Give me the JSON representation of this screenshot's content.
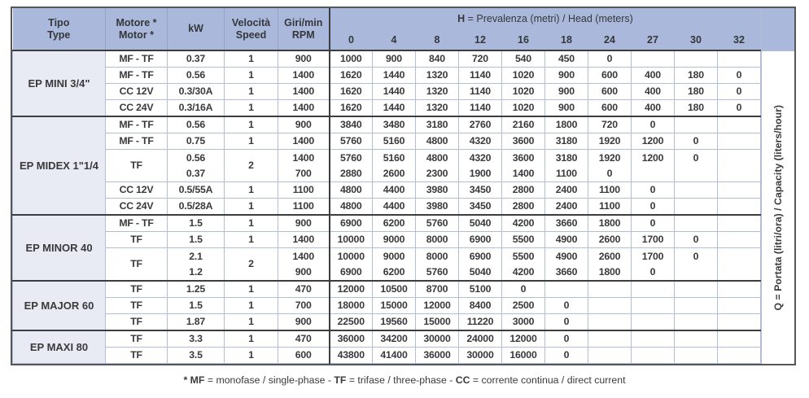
{
  "colors": {
    "header_bg": "#aab9db",
    "group_bg": "#e8eaf4",
    "grid_thin": "#b3bdd6",
    "grid_thick": "#3c3d40",
    "outer_border": "#55565a",
    "text": "#3a3a3c"
  },
  "table": {
    "header": {
      "tipo": "Tipo\nType",
      "motore": "Motore *\nMotor *",
      "kw": "kW",
      "speed": "Velocità\nSpeed",
      "rpm": "Giri/min\nRPM",
      "h_title_parts": [
        {
          "t": "H",
          "b": true
        },
        {
          "t": " = Prevalenza (metri) / Head (meters)",
          "b": false
        }
      ],
      "heads": [
        "0",
        "4",
        "8",
        "12",
        "16",
        "18",
        "24",
        "27",
        "30",
        "32"
      ]
    },
    "q_label": "Q = Portata (litri/ora) / Capacity (liters/hour)",
    "groups": [
      {
        "name": "EP MINI 3/4\"",
        "rows": [
          {
            "motor": "MF - TF",
            "kw": "0.37",
            "speed": "1",
            "rpm": "900",
            "values": [
              "1000",
              "900",
              "840",
              "720",
              "540",
              "450",
              "0",
              "",
              "",
              ""
            ]
          },
          {
            "motor": "MF - TF",
            "kw": "0.56",
            "speed": "1",
            "rpm": "1400",
            "values": [
              "1620",
              "1440",
              "1320",
              "1140",
              "1020",
              "900",
              "600",
              "400",
              "180",
              "0"
            ]
          },
          {
            "motor": "CC 12V",
            "kw": "0.3/30A",
            "speed": "1",
            "rpm": "1400",
            "values": [
              "1620",
              "1440",
              "1320",
              "1140",
              "1020",
              "900",
              "600",
              "400",
              "180",
              "0"
            ]
          },
          {
            "motor": "CC 24V",
            "kw": "0.3/16A",
            "speed": "1",
            "rpm": "1400",
            "values": [
              "1620",
              "1440",
              "1320",
              "1140",
              "1020",
              "900",
              "600",
              "400",
              "180",
              "0"
            ]
          }
        ]
      },
      {
        "name": "EP MIDEX 1\"1/4",
        "rows": [
          {
            "motor": "MF - TF",
            "kw": "0.56",
            "speed": "1",
            "rpm": "900",
            "values": [
              "3840",
              "3480",
              "3180",
              "2760",
              "2160",
              "1800",
              "720",
              "0",
              "",
              ""
            ]
          },
          {
            "motor": "MF - TF",
            "kw": "0.75",
            "speed": "1",
            "rpm": "1400",
            "values": [
              "5760",
              "5160",
              "4800",
              "4320",
              "3600",
              "3180",
              "1920",
              "1200",
              "0",
              ""
            ]
          },
          {
            "motor": "TF",
            "kw": [
              "0.56",
              "0.37"
            ],
            "speed": "2",
            "rpm": [
              "1400",
              "700"
            ],
            "values": [
              [
                "5760",
                "2880"
              ],
              [
                "5160",
                "2600"
              ],
              [
                "4800",
                "2300"
              ],
              [
                "4320",
                "1900"
              ],
              [
                "3600",
                "1400"
              ],
              [
                "3180",
                "1100"
              ],
              [
                "1920",
                "0"
              ],
              [
                "1200",
                ""
              ],
              [
                "0",
                ""
              ],
              [
                "",
                ""
              ]
            ]
          },
          {
            "motor": "CC 12V",
            "kw": "0.5/55A",
            "speed": "1",
            "rpm": "1100",
            "values": [
              "4800",
              "4400",
              "3980",
              "3450",
              "2800",
              "2400",
              "1100",
              "0",
              "",
              ""
            ]
          },
          {
            "motor": "CC 24V",
            "kw": "0.5/28A",
            "speed": "1",
            "rpm": "1100",
            "values": [
              "4800",
              "4400",
              "3980",
              "3450",
              "2800",
              "2400",
              "1100",
              "0",
              "",
              ""
            ]
          }
        ]
      },
      {
        "name": "EP MINOR 40",
        "rows": [
          {
            "motor": "MF - TF",
            "kw": "1.5",
            "speed": "1",
            "rpm": "900",
            "values": [
              "6900",
              "6200",
              "5760",
              "5040",
              "4200",
              "3660",
              "1800",
              "0",
              "",
              ""
            ]
          },
          {
            "motor": "TF",
            "kw": "1.5",
            "speed": "1",
            "rpm": "1400",
            "values": [
              "10000",
              "9000",
              "8000",
              "6900",
              "5500",
              "4900",
              "2600",
              "1700",
              "0",
              ""
            ]
          },
          {
            "motor": "TF",
            "kw": [
              "2.1",
              "1.2"
            ],
            "speed": "2",
            "rpm": [
              "1400",
              "900"
            ],
            "values": [
              [
                "10000",
                "6900"
              ],
              [
                "9000",
                "6200"
              ],
              [
                "8000",
                "5760"
              ],
              [
                "6900",
                "5040"
              ],
              [
                "5500",
                "4200"
              ],
              [
                "4900",
                "3660"
              ],
              [
                "2600",
                "1800"
              ],
              [
                "1700",
                "0"
              ],
              [
                "0",
                ""
              ],
              [
                "",
                ""
              ]
            ]
          }
        ]
      },
      {
        "name": "EP MAJOR 60",
        "rows": [
          {
            "motor": "TF",
            "kw": "1.25",
            "speed": "1",
            "rpm": "470",
            "values": [
              "12000",
              "10500",
              "8700",
              "5100",
              "0",
              "",
              "",
              "",
              "",
              ""
            ]
          },
          {
            "motor": "TF",
            "kw": "1.5",
            "speed": "1",
            "rpm": "700",
            "values": [
              "18000",
              "15000",
              "12000",
              "8400",
              "2500",
              "0",
              "",
              "",
              "",
              ""
            ]
          },
          {
            "motor": "TF",
            "kw": "1.87",
            "speed": "1",
            "rpm": "900",
            "values": [
              "22500",
              "19560",
              "15000",
              "11220",
              "3000",
              "0",
              "",
              "",
              "",
              ""
            ]
          }
        ]
      },
      {
        "name": "EP MAXI 80",
        "rows": [
          {
            "motor": "TF",
            "kw": "3.3",
            "speed": "1",
            "rpm": "470",
            "values": [
              "36000",
              "34200",
              "30000",
              "24000",
              "12000",
              "0",
              "",
              "",
              "",
              ""
            ]
          },
          {
            "motor": "TF",
            "kw": "3.5",
            "speed": "1",
            "rpm": "600",
            "values": [
              "43800",
              "41400",
              "36000",
              "30000",
              "16000",
              "0",
              "",
              "",
              "",
              ""
            ]
          }
        ]
      }
    ],
    "footnote_parts": [
      {
        "t": "* ",
        "b": true
      },
      {
        "t": "MF",
        "b": true
      },
      {
        "t": " = monofase / single-phase - ",
        "b": false
      },
      {
        "t": "TF",
        "b": true
      },
      {
        "t": " = trifase / three-phase - ",
        "b": false
      },
      {
        "t": "CC",
        "b": true
      },
      {
        "t": " = corrente continua / direct current",
        "b": false
      }
    ]
  }
}
